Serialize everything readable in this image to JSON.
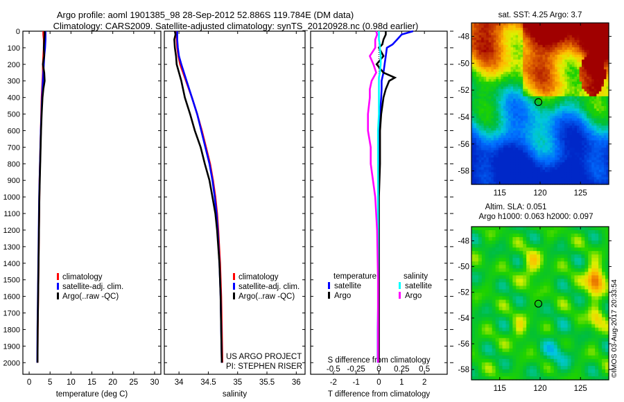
{
  "header": {
    "line1": "Argo profile: aoml 1901385_98 28-Sep-2012 52.886S 119.784E (DM data)",
    "line2": "Climatology: CARS2009. Satellite-adjusted climatology: synTS_20120928.nc (0.98d earlier)"
  },
  "footer": {
    "project": "US ARGO PROJECT",
    "pi": "PI: STEPHEN RISER",
    "stamp": "©IMOS 03-Aug-2017 20:33:54"
  },
  "colors": {
    "climatology": "#ff0000",
    "satellite": "#0000ff",
    "argo": "#000000",
    "sal_satellite": "#00ffff",
    "sal_argo": "#ff00ff"
  },
  "chart_data": [
    {
      "type": "line",
      "id": "temperature",
      "xlabel": "temperature (deg C)",
      "ylabel": "",
      "xlim": [
        -1.5,
        31.5
      ],
      "ylim": [
        2070,
        0
      ],
      "xticks": [
        "0",
        "5",
        "10",
        "15",
        "20",
        "25",
        "30"
      ],
      "yticks": [
        "0",
        "100",
        "200",
        "300",
        "400",
        "500",
        "600",
        "700",
        "800",
        "900",
        "1000",
        "1100",
        "1200",
        "1300",
        "1400",
        "1500",
        "1600",
        "1700",
        "1800",
        "1900",
        "2000"
      ],
      "legend": {
        "placement": "bottom-center",
        "entries": [
          "climatology",
          "satellite-adj. clim.",
          "Argo(..raw -QC)"
        ]
      },
      "depth": [
        0,
        20,
        50,
        100,
        150,
        200,
        250,
        300,
        350,
        400,
        500,
        600,
        700,
        800,
        900,
        1000,
        1200,
        1400,
        1600,
        1800,
        2000
      ],
      "series": [
        {
          "name": "climatology",
          "values": [
            3.4,
            3.4,
            3.5,
            3.5,
            3.4,
            3.3,
            3.3,
            3.2,
            3.1,
            3.0,
            2.9,
            2.8,
            2.7,
            2.6,
            2.5,
            2.45,
            2.35,
            2.25,
            2.15,
            2.05,
            2.0
          ]
        },
        {
          "name": "satellite-adj. clim.",
          "values": [
            3.9,
            3.9,
            3.9,
            3.8,
            3.6,
            3.5,
            3.4,
            3.3,
            3.2,
            3.1,
            2.95,
            2.8,
            2.7,
            2.6,
            2.5,
            2.4,
            2.3,
            2.2,
            2.1,
            2.0,
            1.95
          ]
        },
        {
          "name": "Argo(..raw -QC)",
          "values": [
            3.7,
            3.7,
            3.6,
            3.5,
            3.6,
            3.3,
            3.6,
            3.7,
            3.4,
            3.2,
            3.0,
            2.85,
            2.75,
            2.65,
            2.55,
            2.45,
            2.35,
            2.25,
            2.15,
            2.05,
            2.0
          ]
        }
      ]
    },
    {
      "type": "line",
      "id": "salinity",
      "xlabel": "salinity",
      "xlim": [
        33.75,
        36.15
      ],
      "ylim": [
        2070,
        0
      ],
      "xticks": [
        "34",
        "34.5",
        "35",
        "35.5",
        "36"
      ],
      "legend": {
        "placement": "bottom-center",
        "entries": [
          "climatology",
          "satellite-adj. clim.",
          "Argo(..raw -QC)"
        ]
      },
      "depth": [
        0,
        20,
        50,
        100,
        150,
        200,
        300,
        400,
        500,
        600,
        700,
        800,
        900,
        1000,
        1100,
        1200,
        1400,
        1600,
        1800,
        2000
      ],
      "series": [
        {
          "name": "climatology",
          "values": [
            33.96,
            33.96,
            33.96,
            33.97,
            33.99,
            34.02,
            34.12,
            34.22,
            34.31,
            34.39,
            34.46,
            34.53,
            34.58,
            34.62,
            34.65,
            34.67,
            34.7,
            34.72,
            34.73,
            34.74
          ]
        },
        {
          "name": "satellite-adj. clim.",
          "values": [
            33.97,
            33.97,
            33.97,
            33.98,
            34.0,
            34.04,
            34.13,
            34.22,
            34.31,
            34.38,
            34.45,
            34.52,
            34.57,
            34.61,
            34.64,
            34.66,
            34.69,
            34.71,
            34.72,
            34.73
          ]
        },
        {
          "name": "Argo(..raw -QC)",
          "values": [
            33.93,
            33.94,
            33.92,
            33.93,
            33.95,
            33.96,
            34.04,
            34.1,
            34.19,
            34.27,
            34.37,
            34.44,
            34.52,
            34.57,
            34.62,
            34.65,
            34.69,
            34.71,
            34.72,
            34.73
          ]
        }
      ]
    },
    {
      "type": "line",
      "id": "difference",
      "xlabel": "T difference from climatology",
      "x2label": "S difference from climatology",
      "xlim": [
        -3.0,
        3.0
      ],
      "x2lim": [
        -0.75,
        0.75
      ],
      "ylim": [
        2070,
        0
      ],
      "xticks": [
        "-2",
        "-1",
        "0",
        "1",
        "2"
      ],
      "x2ticks": [
        "-0.5",
        "-0.25",
        "0",
        "0.25",
        "0.5"
      ],
      "legend": {
        "placement": "bottom-center",
        "temperature_title": "temperature",
        "salinity_title": "salinity",
        "entries": [
          "satellite",
          "Argo",
          "satellite",
          "Argo"
        ]
      },
      "depth": [
        0,
        20,
        50,
        80,
        100,
        150,
        200,
        250,
        280,
        300,
        350,
        400,
        500,
        600,
        700,
        800,
        1000,
        1200,
        1500,
        1800,
        2000
      ],
      "series": [
        {
          "name": "temperature satellite",
          "axis": "T",
          "values": [
            1.5,
            1.0,
            0.8,
            0.6,
            0.35,
            0.3,
            0.25,
            0.2,
            0.15,
            0.12,
            0.12,
            0.1,
            0.05,
            0.02,
            0.0,
            0.0,
            -0.02,
            -0.02,
            -0.02,
            -0.05,
            -0.05
          ]
        },
        {
          "name": "temperature Argo",
          "axis": "T",
          "values": [
            0.3,
            0.3,
            0.2,
            0.15,
            0.0,
            0.2,
            -0.1,
            0.2,
            0.7,
            0.45,
            0.3,
            0.2,
            0.1,
            0.05,
            0.05,
            0.05,
            0.0,
            0.0,
            0.0,
            0.0,
            0.0
          ]
        },
        {
          "name": "salinity satellite",
          "axis": "S",
          "values": [
            0.0,
            0.0,
            0.0,
            0.01,
            0.01,
            0.02,
            0.02,
            0.01,
            0.0,
            0.0,
            0.0,
            0.0,
            0.0,
            -0.01,
            -0.01,
            -0.01,
            -0.01,
            -0.01,
            -0.01,
            -0.01,
            -0.01
          ]
        },
        {
          "name": "salinity Argo",
          "axis": "S",
          "values": [
            -0.03,
            -0.02,
            -0.04,
            -0.04,
            -0.04,
            -0.1,
            -0.06,
            -0.03,
            -0.06,
            -0.08,
            -0.1,
            -0.1,
            -0.12,
            -0.12,
            -0.09,
            -0.09,
            -0.04,
            -0.02,
            -0.01,
            -0.01,
            -0.01
          ]
        }
      ]
    },
    {
      "type": "heatmap",
      "id": "sst-map",
      "title": "sat. SST: 4.25 Argo: 3.7",
      "xlim": [
        111.5,
        128.5
      ],
      "ylim": [
        -59,
        -47
      ],
      "xticks": [
        "115",
        "120",
        "125"
      ],
      "yticks": [
        "-48",
        "-50",
        "-52",
        "-54",
        "-56",
        "-58"
      ],
      "marker": {
        "lon": 119.784,
        "lat": -52.886
      }
    },
    {
      "type": "heatmap",
      "id": "sla-map",
      "title": "Altim. SLA: 0.051",
      "subtitle": "Argo h1000: 0.063 h2000: 0.097",
      "xlim": [
        111.5,
        128.5
      ],
      "ylim": [
        -58.8,
        -46.9
      ],
      "xticks": [
        "115",
        "120",
        "125"
      ],
      "yticks": [
        "-48",
        "-50",
        "-52",
        "-54",
        "-56",
        "-58"
      ],
      "marker": {
        "lon": 119.784,
        "lat": -52.886
      }
    }
  ]
}
